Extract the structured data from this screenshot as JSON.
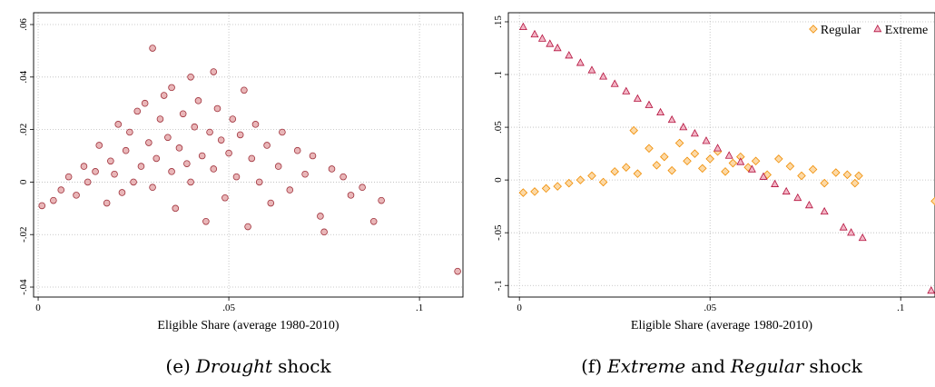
{
  "chart_data": [
    {
      "type": "scatter",
      "xlabel": "Eligible Share (average 1980-2010)",
      "caption": [
        {
          "text": "(e)"
        },
        {
          "text": "Drought",
          "italic": true
        },
        {
          "text": "shock"
        }
      ],
      "xlim": [
        -0.0012,
        0.1114
      ],
      "ylim": [
        -0.0438,
        0.0645
      ],
      "xticks": [
        0,
        {
          "value": 0.05,
          "label": ".05"
        },
        {
          "value": 0.1,
          "label": ".1"
        }
      ],
      "yticks": [
        {
          "value": -0.04,
          "label": "-.04"
        },
        {
          "value": -0.02,
          "label": "-.02"
        },
        0,
        {
          "value": 0.02,
          "label": ".02"
        },
        {
          "value": 0.04,
          "label": ".04"
        },
        {
          "value": 0.06,
          "label": ".06"
        }
      ],
      "grid": true,
      "series": [
        {
          "marker": "circle",
          "color": "#a0323c",
          "fill": "#e9b6b8",
          "x": [
            0.001,
            0.004,
            0.006,
            0.008,
            0.01,
            0.012,
            0.013,
            0.015,
            0.016,
            0.018,
            0.019,
            0.02,
            0.021,
            0.022,
            0.023,
            0.024,
            0.025,
            0.026,
            0.027,
            0.028,
            0.029,
            0.03,
            0.03,
            0.031,
            0.032,
            0.033,
            0.034,
            0.035,
            0.035,
            0.036,
            0.037,
            0.038,
            0.039,
            0.04,
            0.04,
            0.041,
            0.042,
            0.043,
            0.044,
            0.045,
            0.046,
            0.046,
            0.047,
            0.048,
            0.049,
            0.05,
            0.051,
            0.052,
            0.053,
            0.054,
            0.055,
            0.056,
            0.057,
            0.058,
            0.06,
            0.061,
            0.063,
            0.064,
            0.066,
            0.068,
            0.07,
            0.072,
            0.074,
            0.075,
            0.077,
            0.08,
            0.082,
            0.085,
            0.088,
            0.09,
            0.11
          ],
          "values": [
            -0.009,
            -0.007,
            -0.003,
            0.002,
            -0.005,
            0.006,
            0.0,
            0.004,
            0.014,
            -0.008,
            0.008,
            0.003,
            0.022,
            -0.004,
            0.012,
            0.019,
            0.0,
            0.027,
            0.006,
            0.03,
            0.015,
            0.051,
            -0.002,
            0.009,
            0.024,
            0.033,
            0.017,
            0.036,
            0.004,
            -0.01,
            0.013,
            0.026,
            0.007,
            0.04,
            0.0,
            0.021,
            0.031,
            0.01,
            -0.015,
            0.019,
            0.042,
            0.005,
            0.028,
            0.016,
            -0.006,
            0.011,
            0.024,
            0.002,
            0.018,
            0.035,
            -0.017,
            0.009,
            0.022,
            0.0,
            0.014,
            -0.008,
            0.006,
            0.019,
            -0.003,
            0.012,
            0.003,
            0.01,
            -0.013,
            -0.019,
            0.005,
            0.002,
            -0.005,
            -0.002,
            -0.015,
            -0.007,
            -0.034
          ]
        }
      ]
    },
    {
      "type": "scatter",
      "xlabel": "Eligible Share (average 1980-2010)",
      "caption": [
        {
          "text": "(f)"
        },
        {
          "text": "Extreme",
          "italic": true
        },
        {
          "text": "and"
        },
        {
          "text": "Regular",
          "italic": true
        },
        {
          "text": "shock"
        }
      ],
      "xlim": [
        -0.0029,
        0.109
      ],
      "ylim": [
        -0.111,
        0.1586
      ],
      "xticks": [
        0,
        {
          "value": 0.05,
          "label": ".05"
        },
        {
          "value": 0.1,
          "label": ".1"
        }
      ],
      "yticks": [
        {
          "value": -0.1,
          "label": "-.1"
        },
        {
          "value": -0.05,
          "label": "-.05"
        },
        0,
        {
          "value": 0.05,
          "label": ".05"
        },
        {
          "value": 0.1,
          "label": ".1"
        },
        {
          "value": 0.15,
          "label": ".15"
        }
      ],
      "grid": true,
      "legend": "top-right",
      "series": [
        {
          "name": "Regular",
          "marker": "diamond",
          "color": "#f08c00",
          "fill": "#fcd9a6",
          "x": [
            0.001,
            0.004,
            0.007,
            0.01,
            0.013,
            0.016,
            0.019,
            0.022,
            0.025,
            0.028,
            0.03,
            0.031,
            0.034,
            0.036,
            0.038,
            0.04,
            0.042,
            0.044,
            0.046,
            0.048,
            0.05,
            0.052,
            0.054,
            0.056,
            0.058,
            0.06,
            0.062,
            0.065,
            0.068,
            0.071,
            0.074,
            0.077,
            0.08,
            0.083,
            0.086,
            0.088,
            0.089,
            0.109
          ],
          "values": [
            -0.012,
            -0.011,
            -0.008,
            -0.006,
            -0.003,
            0.0,
            0.004,
            -0.002,
            0.008,
            0.012,
            0.047,
            0.006,
            0.03,
            0.014,
            0.022,
            0.009,
            0.035,
            0.018,
            0.025,
            0.011,
            0.02,
            0.027,
            0.008,
            0.016,
            0.022,
            0.012,
            0.018,
            0.005,
            0.02,
            0.013,
            0.004,
            0.01,
            -0.003,
            0.007,
            0.005,
            -0.003,
            0.004,
            -0.02
          ]
        },
        {
          "name": "Extreme",
          "marker": "triangle",
          "color": "#b4103c",
          "fill": "#f2b6c6",
          "x": [
            0.001,
            0.004,
            0.006,
            0.008,
            0.01,
            0.013,
            0.016,
            0.019,
            0.022,
            0.025,
            0.028,
            0.031,
            0.034,
            0.037,
            0.04,
            0.043,
            0.046,
            0.049,
            0.052,
            0.055,
            0.058,
            0.061,
            0.064,
            0.067,
            0.07,
            0.073,
            0.076,
            0.08,
            0.085,
            0.087,
            0.09,
            0.108
          ],
          "values": [
            0.145,
            0.138,
            0.134,
            0.129,
            0.125,
            0.118,
            0.111,
            0.104,
            0.098,
            0.091,
            0.084,
            0.077,
            0.071,
            0.064,
            0.057,
            0.05,
            0.044,
            0.037,
            0.03,
            0.023,
            0.017,
            0.01,
            0.003,
            -0.004,
            -0.011,
            -0.017,
            -0.024,
            -0.03,
            -0.045,
            -0.05,
            -0.055,
            -0.105
          ]
        }
      ]
    }
  ]
}
